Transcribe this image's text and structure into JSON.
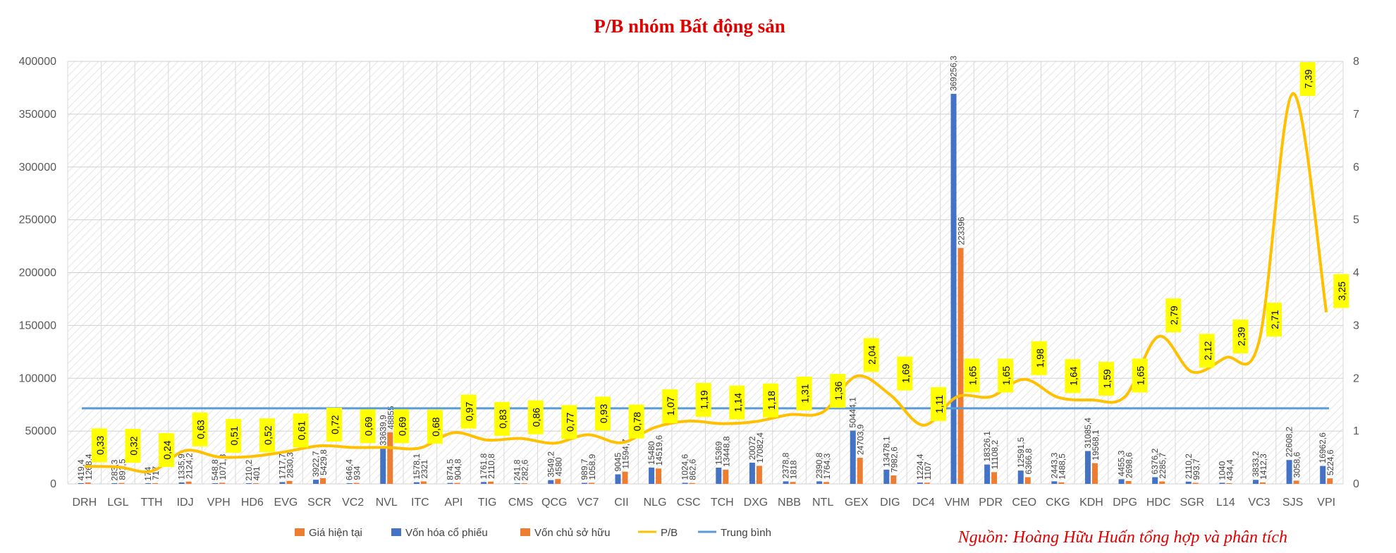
{
  "chart_data": {
    "type": "bar",
    "title": "P/B nhóm Bất động sản",
    "source_note": "Nguồn: Hoàng Hữu Huấn tổng hợp và phân tích",
    "ylim": [
      0,
      400000
    ],
    "y2lim": [
      0,
      8
    ],
    "yticks": [
      "0",
      "50000",
      "100000",
      "150000",
      "200000",
      "250000",
      "300000",
      "350000",
      "400000"
    ],
    "y2ticks": [
      "0",
      "1",
      "2",
      "3",
      "4",
      "5",
      "6",
      "7",
      "8"
    ],
    "grid": true,
    "legend_position": "bottom",
    "categories": [
      "DRH",
      "LGL",
      "TTH",
      "IDJ",
      "VPH",
      "HD6",
      "EVG",
      "SCR",
      "VC2",
      "NVL",
      "ITC",
      "API",
      "TIG",
      "CMS",
      "QCG",
      "VC7",
      "CII",
      "NLG",
      "CSC",
      "TCH",
      "DXG",
      "NBB",
      "NTL",
      "GEX",
      "DIG",
      "DC4",
      "VHM",
      "PDR",
      "CEO",
      "CKG",
      "KDH",
      "DPG",
      "HDC",
      "SGR",
      "L14",
      "VC3",
      "SJS",
      "VPI"
    ],
    "series": [
      {
        "name": "Giá hiện tại",
        "color": "#ed7d31"
      },
      {
        "name": "Vốn hóa cổ phiếu",
        "color": "#4472c4",
        "values": [
          419.4,
          283.3,
          174,
          1335.9,
          548.8,
          210.2,
          1717.7,
          3922.7,
          646.4,
          33639.9,
          1578.1,
          874.5,
          1761.8,
          241.8,
          3549.2,
          989.7,
          9045,
          15480,
          1024.6,
          15369,
          20072,
          2378.8,
          2390.8,
          50444.1,
          13478.1,
          1224.4,
          369256.3,
          18326.1,
          12591.5,
          2443.3,
          31085.4,
          4455.3,
          6376.2,
          2110.2,
          1040,
          3833.2,
          22608.2,
          16962.6
        ],
        "labels": [
          "419,4",
          "283,3",
          "174",
          "1335,9",
          "548,8",
          "210,2",
          "1717,7",
          "3922,7",
          "646,4",
          "33639,9",
          "1578,1",
          "874,5",
          "1761,8",
          "241,8",
          "3549,2",
          "989,7",
          "9045",
          "15480",
          "1024,6",
          "15369",
          "20072",
          "2378,8",
          "2390,8",
          "50444,1",
          "13478,1",
          "1224,4",
          "369256,3",
          "18326,1",
          "12591,5",
          "2443,3",
          "31085,4",
          "4455,3",
          "6376,2",
          "2110,2",
          "1040",
          "3833,2",
          "22608,2",
          "16962,6"
        ]
      },
      {
        "name": "Vốn chủ sở hữu",
        "color": "#ed7d31",
        "values": [
          1268.4,
          891.5,
          717,
          2124.2,
          1071.8,
          401,
          2830.3,
          5429.8,
          934,
          48855,
          2321,
          904.8,
          2110.8,
          282.6,
          4580,
          1058.9,
          11594.7,
          14519.6,
          862.6,
          13448.8,
          17082.4,
          1818,
          1764.3,
          24703.9,
          7982.6,
          1107,
          223396,
          11108.2,
          6366.8,
          1488.5,
          19568.1,
          2698.6,
          2285.7,
          993.7,
          434.4,
          1412.3,
          3058.6,
          5224.6
        ],
        "labels": [
          "1268,4",
          "891,5",
          "717",
          "2124,2",
          "1071,8",
          "401",
          "2830,3",
          "5429,8",
          "934",
          "48855",
          "2321",
          "904,8",
          "2110,8",
          "282,6",
          "4580",
          "1058,9",
          "11594,7",
          "14519,6",
          "862,6",
          "13448,8",
          "17082,4",
          "1818",
          "1764,3",
          "24703,9",
          "7982,6",
          "1107",
          "223396",
          "11108,2",
          "6366,8",
          "1488,5",
          "19568,1",
          "2698,6",
          "2285,7",
          "993,7",
          "434,4",
          "1412,3",
          "3058,6",
          "5224,6"
        ]
      },
      {
        "name": "P/B",
        "color": "#ffc000",
        "axis": "secondary",
        "values": [
          0.33,
          0.32,
          0.24,
          0.63,
          0.51,
          0.52,
          0.61,
          0.72,
          0.69,
          0.69,
          0.68,
          0.97,
          0.83,
          0.86,
          0.77,
          0.93,
          0.78,
          1.07,
          1.19,
          1.14,
          1.18,
          1.31,
          1.36,
          2.04,
          1.69,
          1.11,
          1.65,
          1.65,
          1.98,
          1.64,
          1.59,
          1.65,
          2.79,
          2.12,
          2.39,
          2.71,
          7.39,
          3.25
        ],
        "labels": [
          "0,33",
          "0,32",
          "0,24",
          "0,63",
          "0,51",
          "0,52",
          "0,61",
          "0,72",
          "0,69",
          "0,69",
          "0,68",
          "0,97",
          "0,83",
          "0,86",
          "0,77",
          "0,93",
          "0,78",
          "1,07",
          "1,19",
          "1,14",
          "1,18",
          "1,31",
          "1,36",
          "2,04",
          "1,69",
          "1,11",
          "1,65",
          "1,65",
          "1,98",
          "1,64",
          "1,59",
          "1,65",
          "2,79",
          "2,12",
          "2,39",
          "2,71",
          "7,39",
          "3,25"
        ]
      },
      {
        "name": "Trung bình",
        "color": "#5b9bd5",
        "axis": "secondary",
        "value": 1.43
      }
    ]
  }
}
